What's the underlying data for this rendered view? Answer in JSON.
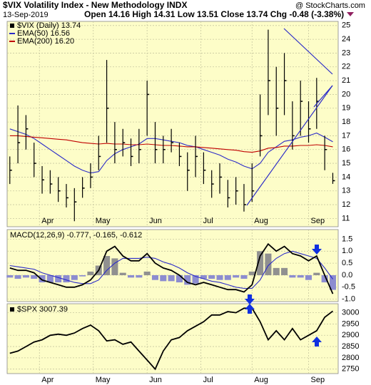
{
  "chart_data": [
    {
      "type": "ohlc",
      "title": "$VIX Volatility Index - New Methodology INDX",
      "date": "13-Sep-2019",
      "quote": "Open 14.16 High 14.31 Low 13.51 Close 13.74 Chg -0.48 (-3.38%)",
      "source": "@ StockCharts.com",
      "background": "#fdfdc8",
      "grid": true,
      "x": [
        0,
        3,
        6,
        9,
        12,
        15,
        18,
        21,
        24,
        27,
        30,
        33,
        36,
        39,
        42,
        45,
        48,
        51,
        54,
        57,
        60,
        63,
        66,
        69,
        72,
        75,
        78,
        81,
        84,
        87,
        90,
        93,
        96,
        99,
        102,
        105,
        108,
        111,
        114,
        117,
        120
      ],
      "xlim": [
        -1,
        122
      ],
      "xticks": [
        {
          "value": 11,
          "label": "Apr"
        },
        {
          "value": 31,
          "label": "May"
        },
        {
          "value": 51,
          "label": "Jun"
        },
        {
          "value": 71,
          "label": "Jul"
        },
        {
          "value": 90,
          "label": "Aug"
        },
        {
          "value": 111,
          "label": "Sep"
        }
      ],
      "ylim": [
        10.4,
        25.3
      ],
      "yticks": [
        11,
        12,
        13,
        14,
        15,
        16,
        17,
        18,
        19,
        20,
        21,
        22,
        23,
        24,
        25
      ],
      "series": [
        {
          "name": "$VIX (Daily) 13.74",
          "color": "#000000",
          "values": [
            14.5,
            16.5,
            17.5,
            15,
            13.8,
            13.5,
            13,
            12.5,
            12.2,
            13.2,
            14,
            15.5,
            19,
            16,
            16.5,
            15.5,
            16,
            20,
            16,
            16,
            16.5,
            15.5,
            14.5,
            15.5,
            14.5,
            13.5,
            14,
            12.5,
            13,
            12,
            13,
            17,
            21,
            19,
            21,
            17,
            19.5,
            17.5,
            19.5,
            16,
            13.74
          ],
          "high": [
            15.5,
            19.2,
            18.5,
            16.5,
            14.8,
            14.5,
            14,
            13.5,
            13.2,
            14,
            15,
            17,
            22.5,
            18,
            17.5,
            16.8,
            17.5,
            21,
            18,
            17,
            17.5,
            16.5,
            15.8,
            17,
            15.8,
            14.5,
            15,
            13.8,
            14,
            13.5,
            15,
            20,
            24.7,
            22,
            23,
            19.5,
            21,
            19.5,
            21.2,
            17,
            14.31
          ],
          "low": [
            13.5,
            15,
            16,
            14,
            12.8,
            12.8,
            12.2,
            11.8,
            10.8,
            12.5,
            13.2,
            14.5,
            16.5,
            15,
            15.5,
            14.8,
            15,
            17,
            15,
            15,
            15.8,
            14.8,
            13,
            14,
            13.5,
            12.5,
            12.8,
            11.8,
            12,
            11.5,
            12.2,
            15.5,
            18.5,
            17,
            18.5,
            16,
            17,
            16.5,
            17.5,
            14.5,
            13.51
          ]
        },
        {
          "name": "EMA(50) 16.56",
          "color": "#2b2bc8",
          "values": [
            17.5,
            17.3,
            17.1,
            16.8,
            16.4,
            16,
            15.6,
            15.2,
            14.8,
            14.5,
            14.3,
            14.4,
            15.2,
            15.7,
            16,
            16.2,
            16.4,
            16.8,
            16.8,
            16.7,
            16.6,
            16.5,
            16.3,
            16.2,
            16,
            15.8,
            15.6,
            15.3,
            15.1,
            14.8,
            14.6,
            15,
            15.8,
            16.2,
            16.6,
            16.7,
            16.9,
            17,
            17.2,
            16.9,
            16.56
          ]
        },
        {
          "name": "EMA(200) 16.20",
          "color": "#c00000",
          "values": [
            17,
            17,
            16.95,
            16.9,
            16.85,
            16.8,
            16.75,
            16.7,
            16.6,
            16.5,
            16.45,
            16.4,
            16.45,
            16.4,
            16.4,
            16.35,
            16.35,
            16.4,
            16.35,
            16.3,
            16.3,
            16.25,
            16.2,
            16.2,
            16.15,
            16.1,
            16.05,
            16,
            15.95,
            15.85,
            15.8,
            15.9,
            16.1,
            16.15,
            16.25,
            16.25,
            16.3,
            16.3,
            16.35,
            16.3,
            16.2
          ]
        }
      ]
    },
    {
      "type": "macd",
      "label": "MACD(12,26,9) -0.777, -0.165, -0.612",
      "background": "#fdfdc8",
      "grid": true,
      "x": [
        0,
        3,
        6,
        9,
        12,
        15,
        18,
        21,
        24,
        27,
        30,
        33,
        36,
        39,
        42,
        45,
        48,
        51,
        54,
        57,
        60,
        63,
        66,
        69,
        72,
        75,
        78,
        81,
        84,
        87,
        90,
        93,
        96,
        99,
        102,
        105,
        108,
        111,
        114,
        117,
        120
      ],
      "xlim": [
        -1,
        122
      ],
      "ylim": [
        -1.1,
        1.9
      ],
      "yticks": [
        {
          "value": -1,
          "label": "-1.0"
        },
        -0.5,
        {
          "value": 0,
          "label": "0.0"
        },
        0.5,
        {
          "value": 1,
          "label": "1.0"
        },
        1.5
      ],
      "hist_pos_color": "#909090",
      "hist_neg_color": "#8c8cd0",
      "macd": {
        "color": "#000000",
        "values": [
          0.3,
          0.2,
          0.2,
          0.1,
          -0.2,
          -0.3,
          -0.4,
          -0.5,
          -0.5,
          -0.4,
          -0.2,
          0.2,
          1.0,
          1.2,
          0.8,
          0.6,
          0.6,
          0.9,
          0.5,
          0.3,
          0.2,
          0.0,
          -0.3,
          -0.4,
          -0.3,
          -0.4,
          -0.5,
          -0.6,
          -0.6,
          -0.7,
          -0.4,
          0.8,
          1.3,
          1.0,
          1.2,
          0.9,
          0.8,
          0.6,
          0.8,
          0.0,
          -0.777
        ]
      },
      "signal": {
        "color": "#2b2bc8",
        "values": [
          0.4,
          0.35,
          0.3,
          0.25,
          0.1,
          0,
          -0.1,
          -0.2,
          -0.3,
          -0.35,
          -0.35,
          -0.2,
          0.2,
          0.5,
          0.7,
          0.7,
          0.7,
          0.75,
          0.7,
          0.55,
          0.45,
          0.3,
          0.1,
          -0.05,
          -0.15,
          -0.25,
          -0.3,
          -0.4,
          -0.5,
          -0.55,
          -0.55,
          -0.2,
          0.4,
          0.7,
          0.9,
          1.0,
          0.9,
          0.8,
          0.7,
          0.3,
          -0.165
        ]
      },
      "histogram": [
        -0.1,
        -0.15,
        -0.1,
        -0.15,
        -0.3,
        -0.3,
        -0.3,
        -0.3,
        -0.2,
        -0.05,
        0.15,
        0.4,
        0.8,
        0.7,
        0.1,
        -0.1,
        -0.1,
        0.15,
        -0.2,
        -0.25,
        -0.25,
        -0.3,
        -0.4,
        -0.35,
        -0.15,
        -0.15,
        -0.2,
        -0.2,
        -0.1,
        -0.15,
        0.15,
        1.0,
        0.9,
        0.3,
        0.3,
        -0.1,
        -0.1,
        -0.2,
        0.1,
        -0.3,
        -0.612
      ]
    },
    {
      "type": "line",
      "label": "$SPX 3007.39",
      "background": "#fdfdc8",
      "grid": true,
      "x": [
        0,
        3,
        6,
        9,
        12,
        15,
        18,
        21,
        24,
        27,
        30,
        33,
        36,
        39,
        42,
        45,
        48,
        51,
        54,
        57,
        60,
        63,
        66,
        69,
        72,
        75,
        78,
        81,
        84,
        87,
        90,
        93,
        96,
        99,
        102,
        105,
        108,
        111,
        114,
        117,
        120
      ],
      "xlim": [
        -1,
        122
      ],
      "xticks": [
        {
          "value": 11,
          "label": "Apr"
        },
        {
          "value": 31,
          "label": "May"
        },
        {
          "value": 51,
          "label": "Jun"
        },
        {
          "value": 71,
          "label": "Jul"
        },
        {
          "value": 90,
          "label": "Aug"
        },
        {
          "value": 111,
          "label": "Sep"
        }
      ],
      "ylim": [
        2730,
        3040
      ],
      "yticks": [
        2750,
        2800,
        2850,
        2900,
        2950,
        3000
      ],
      "color": "#000000",
      "values": [
        2820,
        2830,
        2850,
        2870,
        2880,
        2900,
        2905,
        2900,
        2910,
        2930,
        2945,
        2920,
        2875,
        2880,
        2860,
        2870,
        2830,
        2790,
        2750,
        2830,
        2880,
        2890,
        2920,
        2940,
        2960,
        2990,
        2990,
        3005,
        3000,
        3020,
        3020,
        2960,
        2880,
        2920,
        2880,
        2930,
        2880,
        2900,
        2920,
        2980,
        3007.39
      ]
    }
  ]
}
